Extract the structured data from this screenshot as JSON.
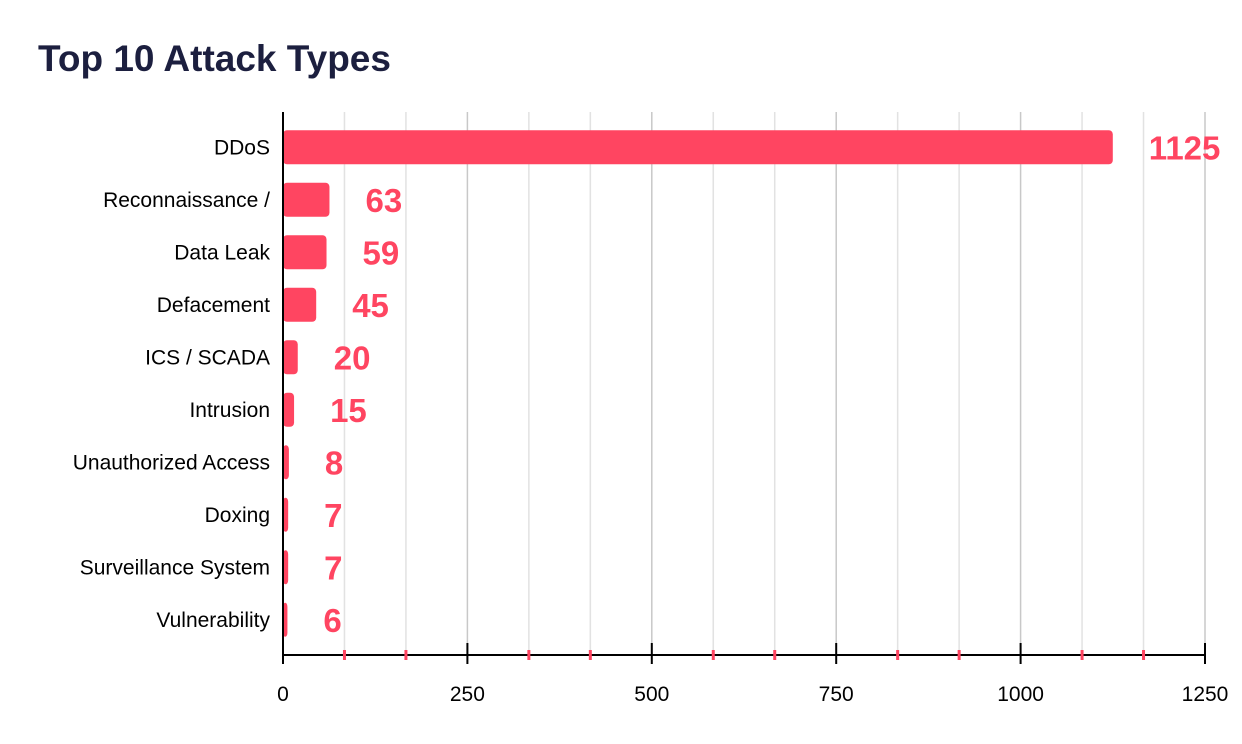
{
  "chart_data": {
    "type": "bar",
    "orientation": "horizontal",
    "title": "Top 10 Attack Types",
    "xlabel": "",
    "ylabel": "",
    "categories": [
      "DDoS",
      "Reconnaissance /",
      "Data Leak",
      "Defacement",
      "ICS / SCADA",
      "Intrusion",
      "Unauthorized Access",
      "Doxing",
      "Surveillance System",
      "Vulnerability"
    ],
    "values": [
      1125,
      63,
      59,
      45,
      20,
      15,
      8,
      7,
      7,
      6
    ],
    "xlim": [
      0,
      1250
    ],
    "xticks": [
      0,
      250,
      500,
      750,
      1000,
      1250
    ],
    "grid": true,
    "legend": "none",
    "data_labels": true,
    "colors": {
      "bar": "#ff4561",
      "label": "#ff4561",
      "title": "#1c1f3f",
      "grid": "#d9d9d9",
      "axis": "#000000"
    }
  }
}
